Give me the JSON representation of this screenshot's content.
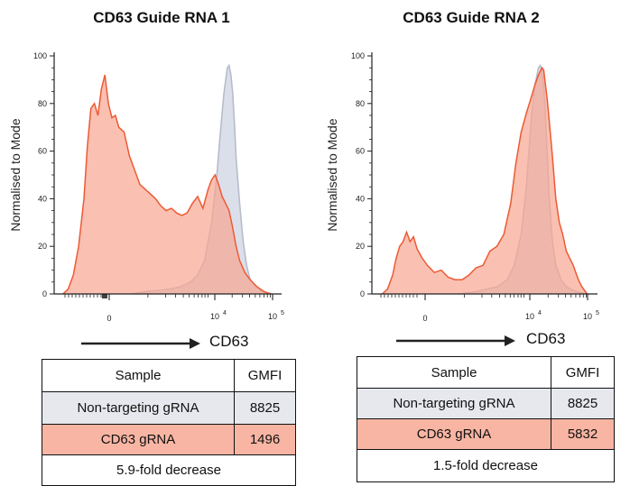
{
  "chart_data": [
    {
      "type": "area",
      "title": "CD63 Guide RNA 1",
      "ylabel": "Normalised to Mode",
      "xlabel": "CD63",
      "ylim": [
        0,
        100
      ],
      "yticks": [
        "0",
        "20",
        "40",
        "60",
        "80",
        "100"
      ],
      "xticks": [
        {
          "label": "0",
          "exp": ""
        },
        {
          "label": "10",
          "exp": "4"
        },
        {
          "label": "10",
          "exp": "5"
        }
      ],
      "x_range": [
        -1,
        5.5
      ],
      "series": [
        {
          "name": "Non-targeting gRNA",
          "color": "#d5d9e6",
          "line": "#b7bccc",
          "x": [
            1.2,
            1.6,
            2.0,
            2.3,
            2.6,
            2.9,
            3.1,
            3.3,
            3.5,
            3.65,
            3.75,
            3.85,
            3.95,
            4.0,
            4.05,
            4.1,
            4.15,
            4.2,
            4.3,
            4.4,
            4.5,
            4.6,
            4.75,
            4.9,
            5.05,
            5.2
          ],
          "y": [
            0,
            1,
            1.5,
            2,
            3,
            5,
            8,
            14,
            30,
            50,
            68,
            84,
            95,
            96,
            92,
            85,
            72,
            57,
            38,
            22,
            12,
            6,
            3,
            1.5,
            0.5,
            0
          ]
        },
        {
          "name": "CD63 gRNA",
          "color": "#f8a591",
          "line": "#ec5a33",
          "x": [
            -0.75,
            -0.6,
            -0.45,
            -0.3,
            -0.15,
            -0.05,
            0.05,
            0.15,
            0.25,
            0.35,
            0.45,
            0.55,
            0.65,
            0.75,
            0.85,
            1.0,
            1.15,
            1.3,
            1.45,
            1.6,
            1.75,
            1.9,
            2.05,
            2.2,
            2.35,
            2.5,
            2.65,
            2.8,
            2.95,
            3.1,
            3.25,
            3.4,
            3.5,
            3.6,
            3.7,
            3.8,
            3.9,
            4.0,
            4.1,
            4.2,
            4.3,
            4.45,
            4.6,
            4.8,
            5.0,
            5.2
          ],
          "y": [
            0,
            2,
            8,
            20,
            40,
            62,
            78,
            80,
            75,
            86,
            92,
            80,
            74,
            75,
            70,
            68,
            58,
            52,
            46,
            44,
            42,
            40,
            37,
            35,
            36,
            34,
            33,
            34,
            38,
            41,
            36,
            44,
            48,
            50,
            46,
            41,
            38,
            35,
            28,
            20,
            14,
            9,
            6,
            3,
            1,
            0
          ]
        }
      ],
      "table": {
        "headers": [
          "Sample",
          "GMFI"
        ],
        "rows": [
          [
            "Non-targeting gRNA",
            "8825"
          ],
          [
            "CD63 gRNA",
            "1496"
          ]
        ],
        "footer": "5.9-fold decrease"
      }
    },
    {
      "type": "area",
      "title": "CD63 Guide RNA 2",
      "ylabel": "Normalised to Mode",
      "xlabel": "CD63",
      "ylim": [
        0,
        100
      ],
      "yticks": [
        "0",
        "20",
        "40",
        "60",
        "80",
        "100"
      ],
      "xticks": [
        {
          "label": "0",
          "exp": ""
        },
        {
          "label": "10",
          "exp": "4"
        },
        {
          "label": "10",
          "exp": "5"
        }
      ],
      "x_range": [
        -1,
        5.5
      ],
      "series": [
        {
          "name": "Non-targeting gRNA",
          "color": "#d5d9e6",
          "line": "#b7bccc",
          "x": [
            1.5,
            2.0,
            2.3,
            2.6,
            2.9,
            3.1,
            3.3,
            3.45,
            3.6,
            3.7,
            3.8,
            3.85,
            3.9,
            3.95,
            4.0,
            4.05,
            4.1,
            4.2,
            4.3,
            4.45,
            4.6,
            4.8,
            5.0,
            5.2
          ],
          "y": [
            0,
            1,
            2,
            3,
            6,
            12,
            25,
            45,
            75,
            88,
            95,
            96,
            94,
            88,
            75,
            60,
            42,
            22,
            12,
            6,
            3,
            1.5,
            0.5,
            0
          ]
        },
        {
          "name": "CD63 gRNA",
          "color": "#f8a591",
          "line": "#ec5a33",
          "x": [
            -0.7,
            -0.55,
            -0.4,
            -0.3,
            -0.2,
            -0.1,
            0.0,
            0.1,
            0.2,
            0.3,
            0.45,
            0.6,
            0.8,
            1.0,
            1.2,
            1.4,
            1.6,
            1.8,
            2.0,
            2.2,
            2.4,
            2.6,
            2.8,
            3.0,
            3.15,
            3.3,
            3.45,
            3.6,
            3.7,
            3.8,
            3.9,
            3.95,
            4.0,
            4.05,
            4.1,
            4.2,
            4.3,
            4.4,
            4.5,
            4.6,
            4.8,
            4.95,
            5.05,
            5.2
          ],
          "y": [
            0,
            2,
            8,
            15,
            20,
            22,
            26,
            22,
            24,
            19,
            15,
            12,
            9,
            10,
            7,
            6,
            6,
            8,
            11,
            12,
            18,
            20,
            25,
            38,
            55,
            68,
            76,
            83,
            88,
            92,
            95,
            94,
            88,
            82,
            74,
            58,
            40,
            30,
            25,
            18,
            12,
            6,
            3,
            0
          ]
        }
      ],
      "table": {
        "headers": [
          "Sample",
          "GMFI"
        ],
        "rows": [
          [
            "Non-targeting gRNA",
            "8825"
          ],
          [
            "CD63 gRNA",
            "5832"
          ]
        ],
        "footer": "1.5-fold decrease"
      }
    }
  ]
}
